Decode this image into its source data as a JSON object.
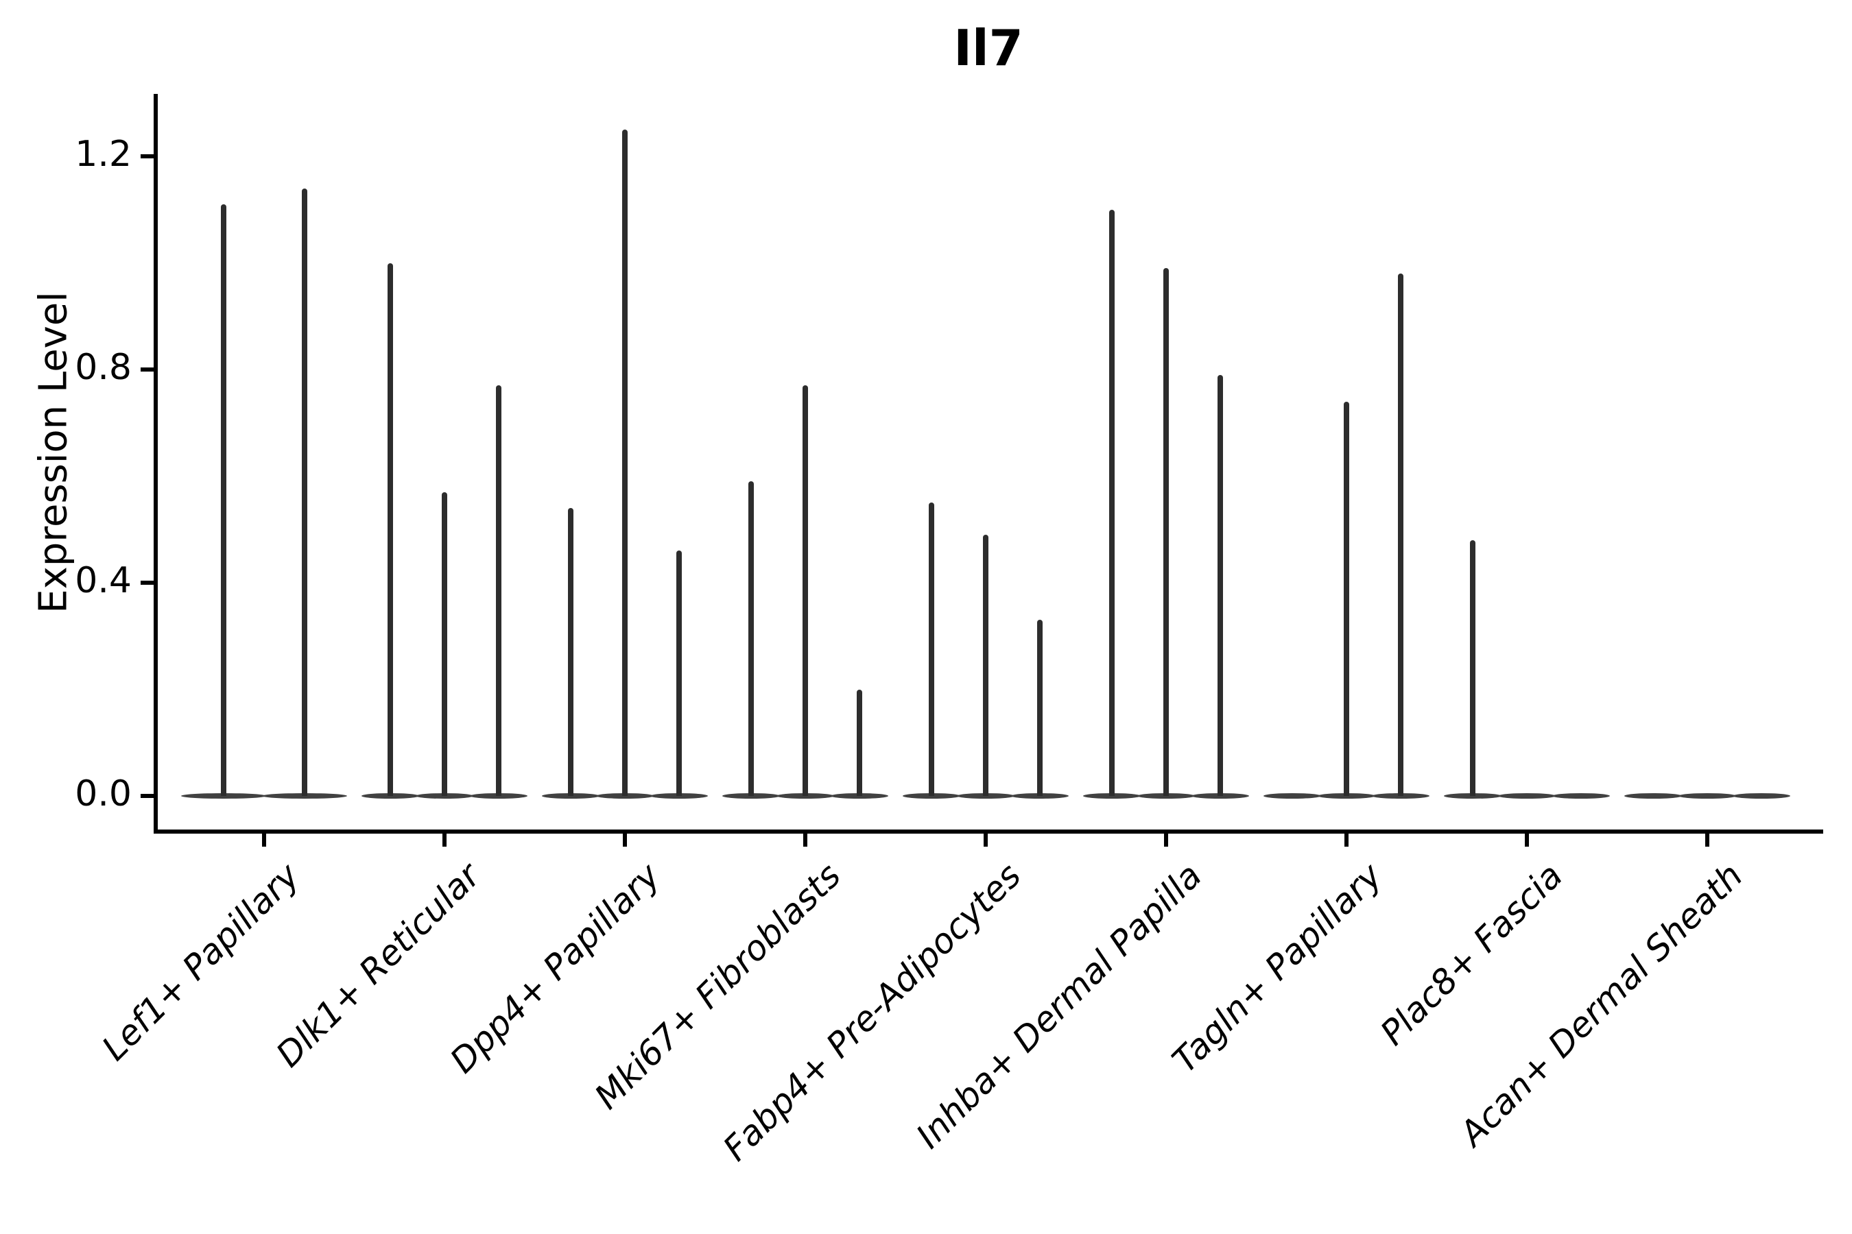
{
  "title": "Il7",
  "style": {
    "background": "#ffffff",
    "ink": "#000000",
    "violin_color": "#2d2d2d",
    "violin_base_color": "#414141"
  },
  "chart_data": {
    "type": "violin",
    "title": "Il7",
    "xlabel": "",
    "ylabel": "Expression Level",
    "ylim": [
      0,
      1.32
    ],
    "yticks": [
      0.0,
      0.4,
      0.8,
      1.2
    ],
    "ytick_labels": [
      "0.0",
      "0.4",
      "0.8",
      "1.2"
    ],
    "grid": false,
    "legend": "none",
    "categories": [
      "Lef1+ Papillary",
      "Dlk1+ Reticular",
      "Dpp4+ Papillary",
      "Mki67+ Fibroblasts",
      "Fabp4+ Pre-Adipocytes",
      "Inhba+ Dermal Papilla",
      "Tagln+ Papillary",
      "Plac8+ Fascia",
      "Acan+ Dermal Sheath"
    ],
    "groups": [
      {
        "category": "Lef1+ Papillary",
        "violins": [
          {
            "offset": -59,
            "peak": 1.11
          },
          {
            "offset": 59,
            "peak": 1.14
          }
        ]
      },
      {
        "category": "Dlk1+ Reticular",
        "violins": [
          {
            "offset": -79,
            "peak": 1.0
          },
          {
            "offset": 0,
            "peak": 0.57
          },
          {
            "offset": 79,
            "peak": 0.77
          }
        ]
      },
      {
        "category": "Dpp4+ Papillary",
        "violins": [
          {
            "offset": -79,
            "peak": 0.54
          },
          {
            "offset": 0,
            "peak": 1.25
          },
          {
            "offset": 79,
            "peak": 0.46
          }
        ]
      },
      {
        "category": "Mki67+ Fibroblasts",
        "violins": [
          {
            "offset": -79,
            "peak": 0.59
          },
          {
            "offset": 0,
            "peak": 0.77
          },
          {
            "offset": 79,
            "peak": 0.2
          }
        ]
      },
      {
        "category": "Fabp4+ Pre-Adipocytes",
        "violins": [
          {
            "offset": -79,
            "peak": 0.55
          },
          {
            "offset": 0,
            "peak": 0.49
          },
          {
            "offset": 79,
            "peak": 0.33
          }
        ]
      },
      {
        "category": "Inhba+ Dermal Papilla",
        "violins": [
          {
            "offset": -79,
            "peak": 1.1
          },
          {
            "offset": 0,
            "peak": 0.99
          },
          {
            "offset": 79,
            "peak": 0.79
          }
        ]
      },
      {
        "category": "Tagln+ Papillary",
        "violins": [
          {
            "offset": -79,
            "peak": 0.0
          },
          {
            "offset": 0,
            "peak": 0.74
          },
          {
            "offset": 79,
            "peak": 0.98
          }
        ]
      },
      {
        "category": "Plac8+ Fascia",
        "violins": [
          {
            "offset": -79,
            "peak": 0.48
          },
          {
            "offset": 0,
            "peak": 0.0
          },
          {
            "offset": 79,
            "peak": 0.0
          }
        ]
      },
      {
        "category": "Acan+ Dermal Sheath",
        "violins": [
          {
            "offset": -79,
            "peak": 0.0
          },
          {
            "offset": 0,
            "peak": 0.0
          },
          {
            "offset": 79,
            "peak": 0.0
          }
        ]
      }
    ]
  }
}
